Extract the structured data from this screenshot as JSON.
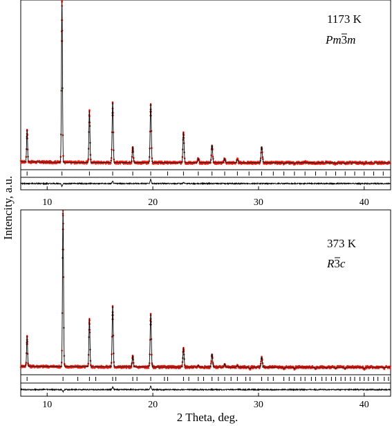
{
  "chart_data": {
    "type": "line",
    "x_label": "2 Theta, deg.",
    "y_label": "Intencity, a.u.",
    "colors": {
      "observed": "#e8261c",
      "calculated": "#000000",
      "difference": "#000000",
      "reflections": "#000000"
    },
    "panels": [
      {
        "temperature": "1173 K",
        "space_group": {
          "base": "Pm",
          "bar": "3",
          "tail": "m"
        },
        "xlim": [
          7.5,
          42.5
        ],
        "ylim": [
          0,
          100
        ],
        "x_ticks": [
          10,
          20,
          30,
          40
        ],
        "x_tick_labels": [
          "10",
          "20",
          "30",
          "40"
        ],
        "background_level": 2.5,
        "peaks": [
          {
            "x": 8.1,
            "y": 22
          },
          {
            "x": 11.4,
            "y": 100
          },
          {
            "x": 14.0,
            "y": 34
          },
          {
            "x": 16.2,
            "y": 39
          },
          {
            "x": 18.1,
            "y": 12
          },
          {
            "x": 19.8,
            "y": 38
          },
          {
            "x": 22.9,
            "y": 21
          },
          {
            "x": 24.3,
            "y": 5
          },
          {
            "x": 25.6,
            "y": 13
          },
          {
            "x": 26.8,
            "y": 5
          },
          {
            "x": 28.0,
            "y": 4.5
          },
          {
            "x": 29.1,
            "y": 2.5
          },
          {
            "x": 30.3,
            "y": 12
          },
          {
            "x": 32.4,
            "y": 2
          },
          {
            "x": 33.4,
            "y": 2
          },
          {
            "x": 34.4,
            "y": 3
          },
          {
            "x": 35.4,
            "y": 2
          },
          {
            "x": 36.4,
            "y": 3
          },
          {
            "x": 37.3,
            "y": 2
          },
          {
            "x": 38.2,
            "y": 2
          },
          {
            "x": 40.0,
            "y": 2
          },
          {
            "x": 41.8,
            "y": 2.5
          }
        ],
        "reflection_marks": [
          8.1,
          11.4,
          14.0,
          16.2,
          18.1,
          19.8,
          21.4,
          22.9,
          24.3,
          25.6,
          26.8,
          28.0,
          29.1,
          30.3,
          31.4,
          32.4,
          33.4,
          34.4,
          35.4,
          36.4,
          37.3,
          38.2,
          39.1,
          40.0,
          40.9,
          41.8
        ],
        "difference_features": [
          {
            "x": 11.4,
            "amp": -0.5
          },
          {
            "x": 16.2,
            "amp": 0.4
          },
          {
            "x": 19.8,
            "amp": 0.8
          },
          {
            "x": 22.9,
            "amp": 0.2
          }
        ]
      },
      {
        "temperature": "373 K",
        "space_group": {
          "base": "R",
          "bar": "3",
          "tail": "c"
        },
        "xlim": [
          7.5,
          42.5
        ],
        "ylim": [
          0,
          100
        ],
        "x_ticks": [
          10,
          20,
          30,
          40
        ],
        "x_tick_labels": [
          "10",
          "20",
          "30",
          "40"
        ],
        "background_level": 3,
        "peaks": [
          {
            "x": 8.1,
            "y": 22
          },
          {
            "x": 11.5,
            "y": 100
          },
          {
            "x": 14.0,
            "y": 33
          },
          {
            "x": 16.2,
            "y": 41
          },
          {
            "x": 18.1,
            "y": 10
          },
          {
            "x": 19.8,
            "y": 36
          },
          {
            "x": 22.9,
            "y": 15
          },
          {
            "x": 24.3,
            "y": 4
          },
          {
            "x": 25.6,
            "y": 11
          },
          {
            "x": 26.8,
            "y": 5
          },
          {
            "x": 28.0,
            "y": 4
          },
          {
            "x": 29.2,
            "y": 2
          },
          {
            "x": 30.3,
            "y": 9
          },
          {
            "x": 32.4,
            "y": 2
          },
          {
            "x": 33.4,
            "y": 2
          },
          {
            "x": 34.4,
            "y": 3
          },
          {
            "x": 35.4,
            "y": 2
          },
          {
            "x": 36.4,
            "y": 2.5
          },
          {
            "x": 37.3,
            "y": 2
          },
          {
            "x": 38.2,
            "y": 2
          },
          {
            "x": 40.0,
            "y": 2
          },
          {
            "x": 41.9,
            "y": 2.5
          }
        ],
        "reflection_marks": [
          8.1,
          11.5,
          12.9,
          14.0,
          14.6,
          16.2,
          16.5,
          18.1,
          18.5,
          19.8,
          21.1,
          21.4,
          22.9,
          23.4,
          24.3,
          24.8,
          25.6,
          26.2,
          26.8,
          27.4,
          28.0,
          28.8,
          29.2,
          30.3,
          30.9,
          31.4,
          32.4,
          32.9,
          33.4,
          34.0,
          34.4,
          35.0,
          35.4,
          36.0,
          36.4,
          36.9,
          37.3,
          37.8,
          38.2,
          38.7,
          39.1,
          39.6,
          40.0,
          40.4,
          40.9,
          41.3,
          41.9,
          42.3
        ],
        "difference_features": [
          {
            "x": 11.5,
            "amp": -0.4
          },
          {
            "x": 16.2,
            "amp": 0.5
          },
          {
            "x": 19.8,
            "amp": 0.7
          }
        ]
      }
    ]
  }
}
